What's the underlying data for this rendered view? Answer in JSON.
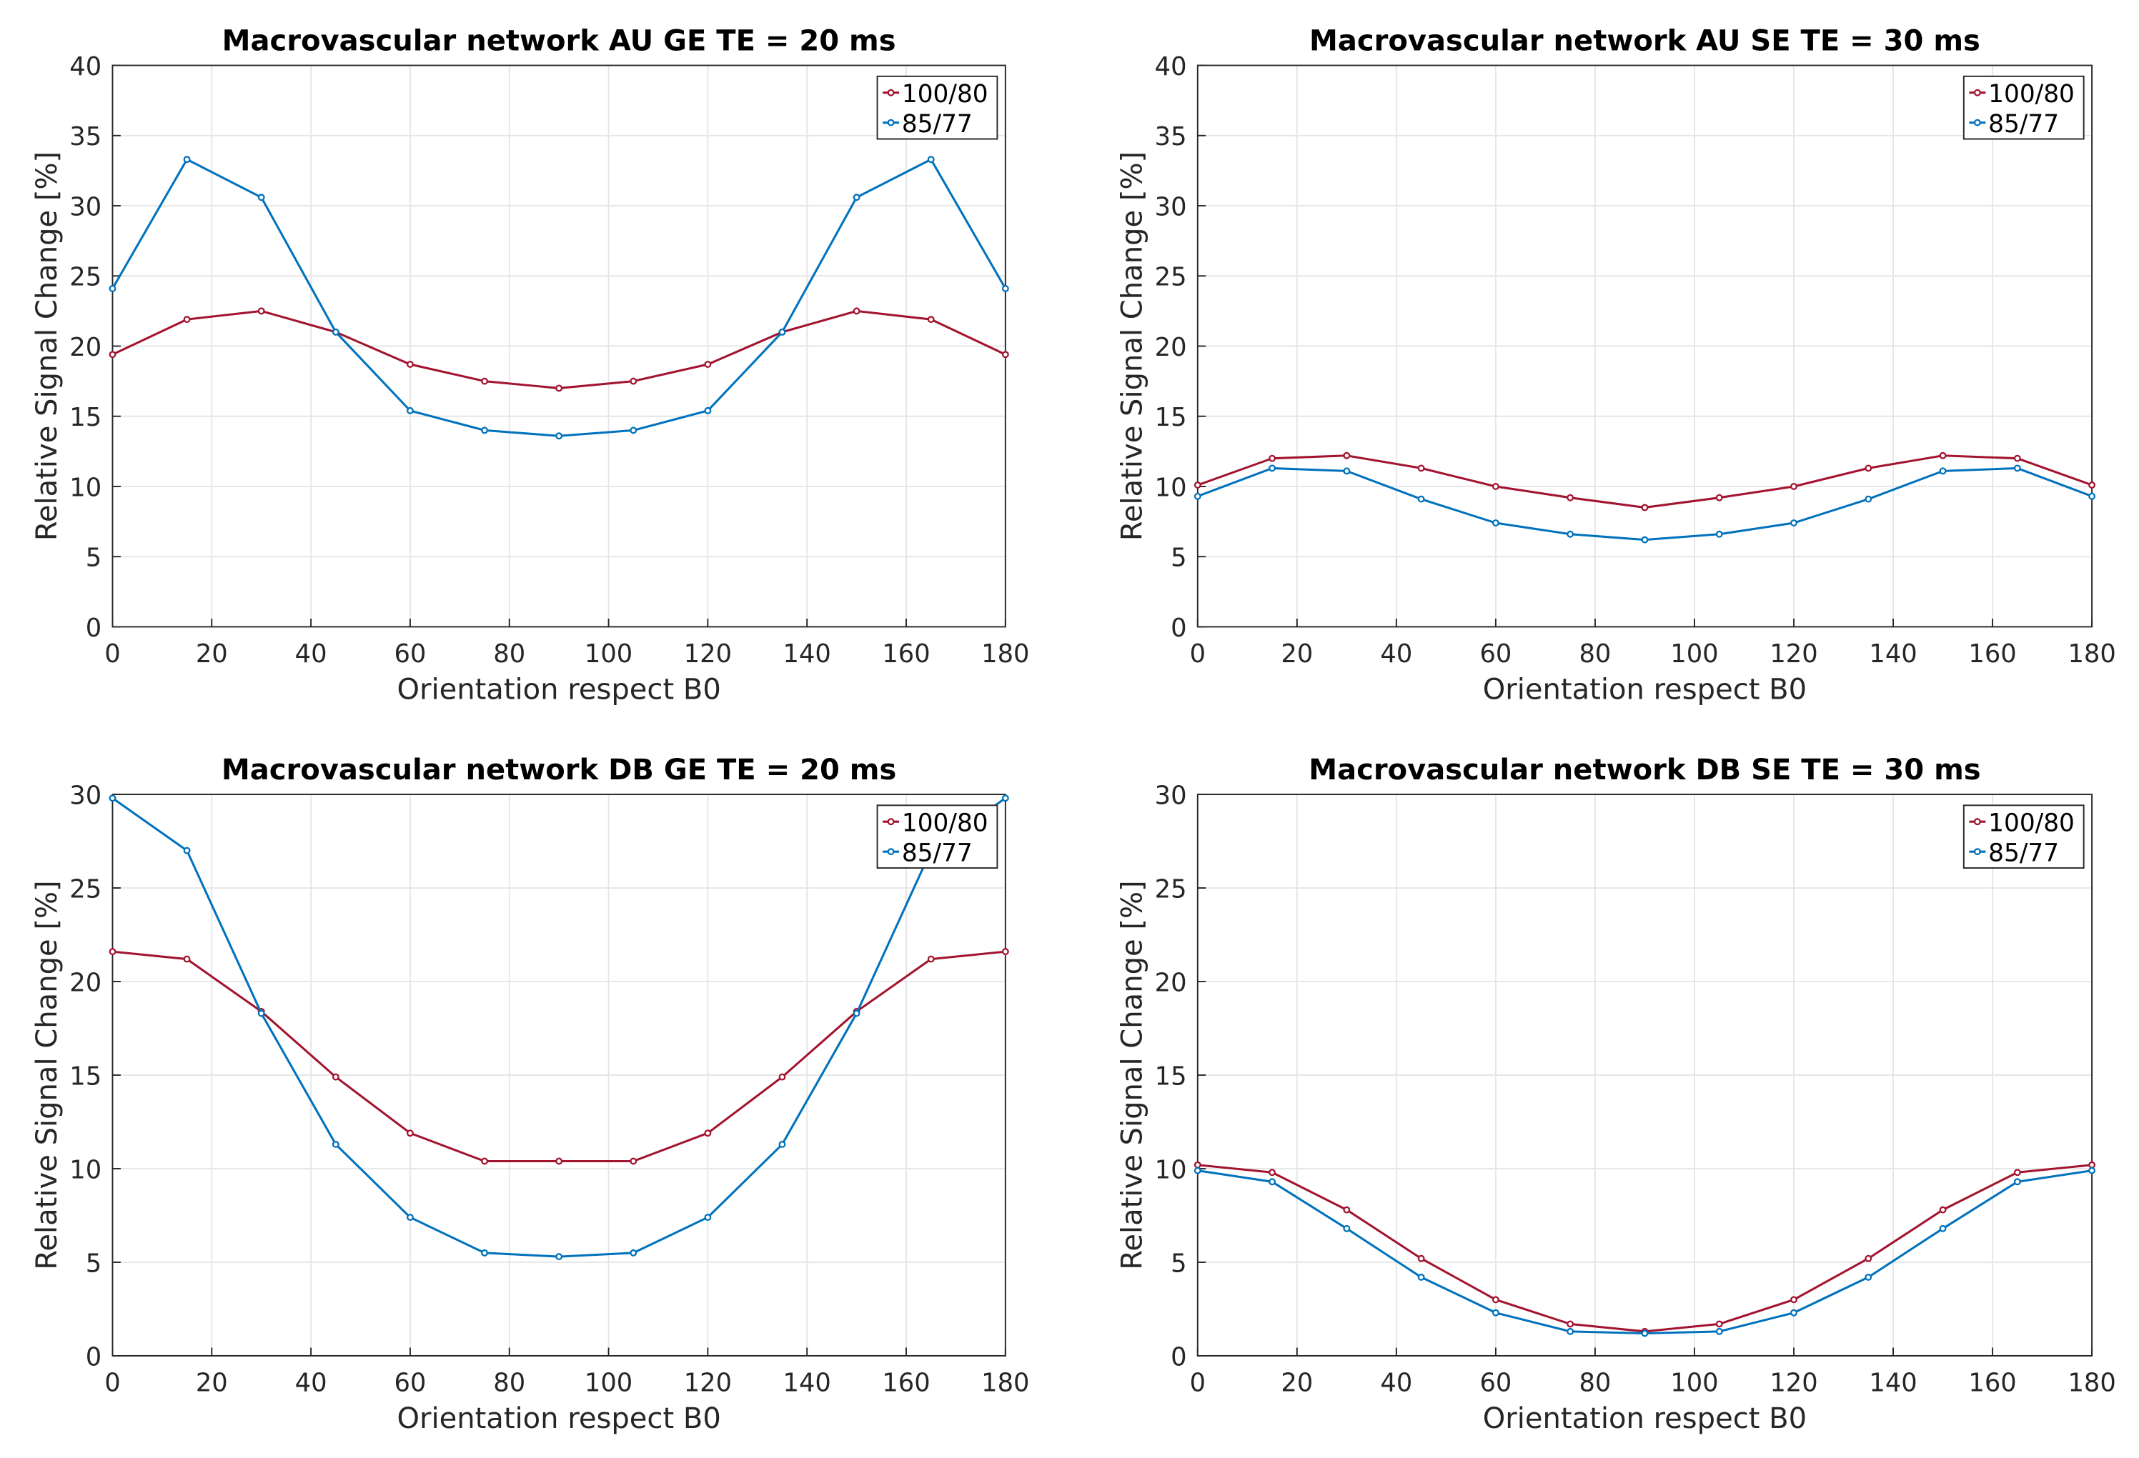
{
  "chart_data": [
    {
      "type": "line",
      "title": "Macrovascular network AU GE TE = 20 ms",
      "xlabel": "Orientation respect B0",
      "ylabel": "Relative Signal Change [%]",
      "x": [
        0,
        15,
        30,
        45,
        60,
        75,
        90,
        105,
        120,
        135,
        150,
        165,
        180
      ],
      "series": [
        {
          "name": "100/80",
          "color": "#A2142F",
          "values": [
            19.4,
            21.9,
            22.5,
            21.0,
            18.7,
            17.5,
            17.0,
            17.5,
            18.7,
            21.0,
            22.5,
            21.9,
            19.4
          ]
        },
        {
          "name": "85/77",
          "color": "#0072BD",
          "values": [
            24.1,
            33.3,
            30.6,
            21.0,
            15.4,
            14.0,
            13.6,
            14.0,
            15.4,
            21.0,
            30.6,
            33.3,
            24.1
          ]
        }
      ],
      "xlim": [
        0,
        180
      ],
      "xticks": [
        0,
        20,
        40,
        60,
        80,
        100,
        120,
        140,
        160,
        180
      ],
      "ylim": [
        0,
        40
      ],
      "yticks": [
        0,
        5,
        10,
        15,
        20,
        25,
        30,
        35,
        40
      ],
      "grid": true,
      "legend": "northeast"
    },
    {
      "type": "line",
      "title": "Macrovascular network AU SE TE = 30 ms",
      "xlabel": "Orientation respect B0",
      "ylabel": "Relative Signal Change [%]",
      "x": [
        0,
        15,
        30,
        45,
        60,
        75,
        90,
        105,
        120,
        135,
        150,
        165,
        180
      ],
      "series": [
        {
          "name": "100/80",
          "color": "#A2142F",
          "values": [
            10.1,
            12.0,
            12.2,
            11.3,
            10.0,
            9.2,
            8.5,
            9.2,
            10.0,
            11.3,
            12.2,
            12.0,
            10.1
          ]
        },
        {
          "name": "85/77",
          "color": "#0072BD",
          "values": [
            9.3,
            11.3,
            11.1,
            9.1,
            7.4,
            6.6,
            6.2,
            6.6,
            7.4,
            9.1,
            11.1,
            11.3,
            9.3
          ]
        }
      ],
      "xlim": [
        0,
        180
      ],
      "xticks": [
        0,
        20,
        40,
        60,
        80,
        100,
        120,
        140,
        160,
        180
      ],
      "ylim": [
        0,
        40
      ],
      "yticks": [
        0,
        5,
        10,
        15,
        20,
        25,
        30,
        35,
        40
      ],
      "grid": true,
      "legend": "northeast"
    },
    {
      "type": "line",
      "title": "Macrovascular network DB GE TE = 20 ms",
      "xlabel": "Orientation respect B0",
      "ylabel": "Relative Signal Change [%]",
      "x": [
        0,
        15,
        30,
        45,
        60,
        75,
        90,
        105,
        120,
        135,
        150,
        165,
        180
      ],
      "series": [
        {
          "name": "100/80",
          "color": "#A2142F",
          "values": [
            21.6,
            21.2,
            18.4,
            14.9,
            11.9,
            10.4,
            10.4,
            10.4,
            11.9,
            14.9,
            18.4,
            21.2,
            21.6
          ]
        },
        {
          "name": "85/77",
          "color": "#0072BD",
          "values": [
            29.8,
            27.0,
            18.3,
            11.3,
            7.4,
            5.5,
            5.3,
            5.5,
            7.4,
            11.3,
            18.3,
            27.0,
            29.8
          ]
        }
      ],
      "xlim": [
        0,
        180
      ],
      "xticks": [
        0,
        20,
        40,
        60,
        80,
        100,
        120,
        140,
        160,
        180
      ],
      "ylim": [
        0,
        30
      ],
      "yticks": [
        0,
        5,
        10,
        15,
        20,
        25,
        30
      ],
      "grid": true,
      "legend": "northeast"
    },
    {
      "type": "line",
      "title": "Macrovascular network DB SE TE = 30 ms",
      "xlabel": "Orientation respect B0",
      "ylabel": "Relative Signal Change [%]",
      "x": [
        0,
        15,
        30,
        45,
        60,
        75,
        90,
        105,
        120,
        135,
        150,
        165,
        180
      ],
      "series": [
        {
          "name": "100/80",
          "color": "#A2142F",
          "values": [
            10.2,
            9.8,
            7.8,
            5.2,
            3.0,
            1.7,
            1.3,
            1.7,
            3.0,
            5.2,
            7.8,
            9.8,
            10.2
          ]
        },
        {
          "name": "85/77",
          "color": "#0072BD",
          "values": [
            9.9,
            9.3,
            6.8,
            4.2,
            2.3,
            1.3,
            1.2,
            1.3,
            2.3,
            4.2,
            6.8,
            9.3,
            9.9
          ]
        }
      ],
      "xlim": [
        0,
        180
      ],
      "xticks": [
        0,
        20,
        40,
        60,
        80,
        100,
        120,
        140,
        160,
        180
      ],
      "ylim": [
        0,
        30
      ],
      "yticks": [
        0,
        5,
        10,
        15,
        20,
        25,
        30
      ],
      "grid": true,
      "legend": "northeast"
    }
  ]
}
